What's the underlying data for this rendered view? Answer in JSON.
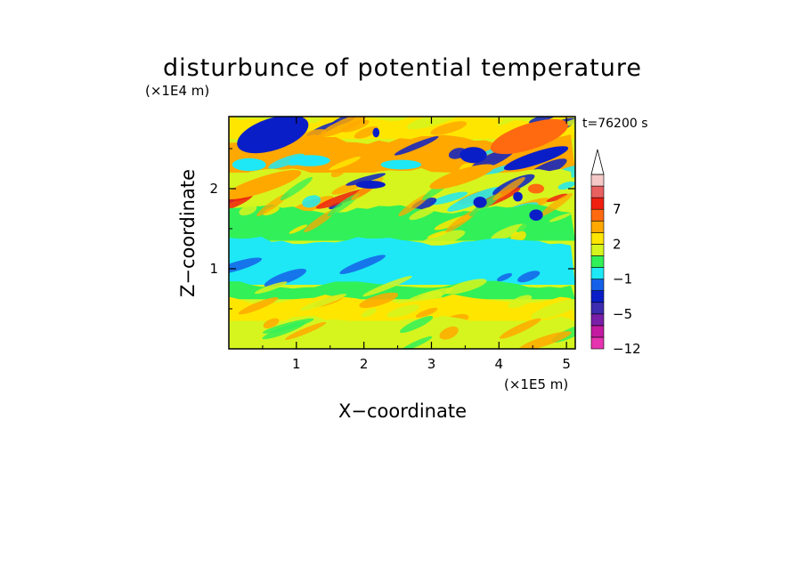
{
  "chart_data": {
    "type": "heatmap",
    "title": "disturbunce of potential temperature",
    "time_label": "t=76200 s",
    "xlabel": "X−coordinate",
    "ylabel": "Z−coordinate",
    "x_unit": "(×1E5 m)",
    "y_unit": "(×1E4 m)",
    "xlim": [
      0,
      5.13
    ],
    "ylim": [
      0,
      2.9
    ],
    "x_ticks": [
      {
        "v": 1,
        "label": "1"
      },
      {
        "v": 2,
        "label": "2"
      },
      {
        "v": 3,
        "label": "3"
      },
      {
        "v": 4,
        "label": "4"
      },
      {
        "v": 5,
        "label": "5"
      }
    ],
    "y_ticks": [
      {
        "v": 1,
        "label": "1"
      },
      {
        "v": 2,
        "label": "2"
      }
    ],
    "colorbar": {
      "levels": [
        {
          "label": "−12",
          "color": "#e633b0"
        },
        {
          "label": "",
          "color": "#c21aa0"
        },
        {
          "label": "",
          "color": "#7a1fa8"
        },
        {
          "label": "−5",
          "color": "#3d2bb0"
        },
        {
          "label": "",
          "color": "#0a1ec8"
        },
        {
          "label": "",
          "color": "#1560e8"
        },
        {
          "label": "−1",
          "color": "#1ee8f5"
        },
        {
          "label": "",
          "color": "#32f058"
        },
        {
          "label": "",
          "color": "#d6f51e"
        },
        {
          "label": "2",
          "color": "#ffe600"
        },
        {
          "label": "",
          "color": "#ffa800"
        },
        {
          "label": "",
          "color": "#ff6a10"
        },
        {
          "label": "7",
          "color": "#f02010"
        },
        {
          "label": "",
          "color": "#e86060"
        },
        {
          "label": "",
          "color": "#f5c8c8"
        }
      ],
      "extend_top": true
    },
    "field_bands": [
      {
        "z_top": 2.9,
        "z_bottom": 2.62,
        "dominant": "#ffe600",
        "features": [
          "#0a1ec8",
          "#ffa800",
          "#d6f51e"
        ]
      },
      {
        "z_top": 2.62,
        "z_bottom": 2.2,
        "dominant": "#ffa800",
        "features": [
          "#ffe600",
          "#1ee8f5",
          "#0a1ec8"
        ]
      },
      {
        "z_top": 2.2,
        "z_bottom": 1.75,
        "dominant": "#d6f51e",
        "features": [
          "#ffa800",
          "#1ee8f5",
          "#0a1ec8",
          "#f02010"
        ]
      },
      {
        "z_top": 1.75,
        "z_bottom": 1.35,
        "dominant": "#32f058",
        "features": [
          "#d6f51e",
          "#ffe600"
        ]
      },
      {
        "z_top": 1.35,
        "z_bottom": 0.8,
        "dominant": "#1ee8f5",
        "features": [
          "#1560e8"
        ]
      },
      {
        "z_top": 0.8,
        "z_bottom": 0.62,
        "dominant": "#32f058",
        "features": [
          "#d6f51e"
        ]
      },
      {
        "z_top": 0.62,
        "z_bottom": 0.35,
        "dominant": "#ffe600",
        "features": [
          "#ffa800",
          "#d6f51e"
        ]
      },
      {
        "z_top": 0.35,
        "z_bottom": 0.0,
        "dominant": "#d6f51e",
        "features": [
          "#32f058",
          "#ffa800"
        ]
      }
    ],
    "features": [
      {
        "x": 0.65,
        "z": 2.68,
        "rx": 0.55,
        "rz": 0.2,
        "color": "#0a1ec8"
      },
      {
        "x": 2.1,
        "z": 2.05,
        "rx": 0.22,
        "rz": 0.05,
        "color": "#0a1ec8"
      },
      {
        "x": 3.62,
        "z": 2.42,
        "rx": 0.2,
        "rz": 0.1,
        "color": "#0a1ec8"
      },
      {
        "x": 4.55,
        "z": 2.38,
        "rx": 0.5,
        "rz": 0.08,
        "color": "#0a1ec8"
      },
      {
        "x": 3.72,
        "z": 1.83,
        "rx": 0.1,
        "rz": 0.07,
        "color": "#0a1ec8"
      },
      {
        "x": 4.55,
        "z": 1.67,
        "rx": 0.1,
        "rz": 0.07,
        "color": "#0a1ec8"
      },
      {
        "x": 4.28,
        "z": 1.9,
        "rx": 0.07,
        "rz": 0.06,
        "color": "#0a1ec8"
      },
      {
        "x": 2.18,
        "z": 2.7,
        "rx": 0.05,
        "rz": 0.06,
        "color": "#0a1ec8"
      },
      {
        "x": 4.45,
        "z": 2.65,
        "rx": 0.6,
        "rz": 0.16,
        "color": "#ff6a10"
      },
      {
        "x": 4.55,
        "z": 2.0,
        "rx": 0.12,
        "rz": 0.06,
        "color": "#ff6a10"
      },
      {
        "x": 3.45,
        "z": 2.15,
        "rx": 0.5,
        "rz": 0.09,
        "color": "#ffa800"
      },
      {
        "x": 0.5,
        "z": 2.05,
        "rx": 0.6,
        "rz": 0.1,
        "color": "#ffa800"
      },
      {
        "x": 1.2,
        "z": 2.35,
        "rx": 0.3,
        "rz": 0.07,
        "color": "#1ee8f5"
      },
      {
        "x": 2.55,
        "z": 2.3,
        "rx": 0.3,
        "rz": 0.06,
        "color": "#1ee8f5"
      },
      {
        "x": 0.3,
        "z": 2.3,
        "rx": 0.25,
        "rz": 0.08,
        "color": "#1ee8f5"
      }
    ]
  }
}
